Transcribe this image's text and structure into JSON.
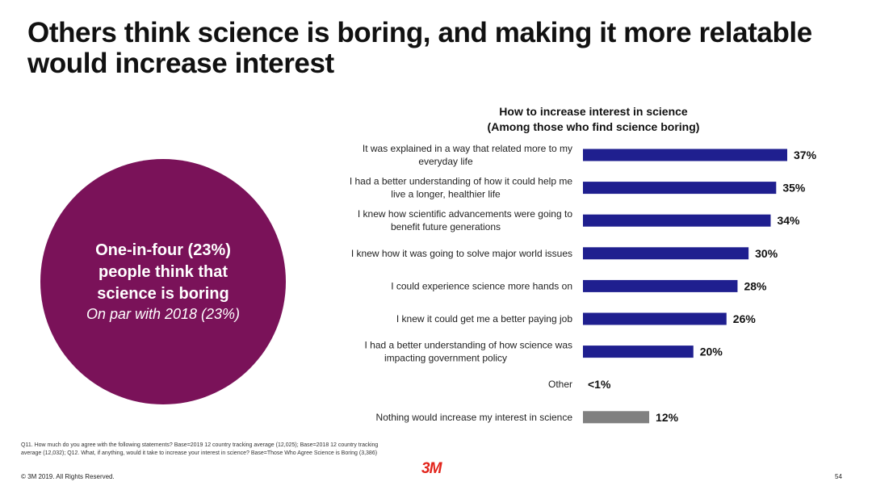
{
  "title": "Others think science is boring, and making it more relatable would increase interest",
  "callout": {
    "main": "One-in-four (23%) people think that science is boring",
    "sub": "On par with 2018 (23%)"
  },
  "chart_title_line1": "How to increase interest in science",
  "chart_title_line2": "(Among those who find science boring)",
  "chart_data": {
    "type": "bar",
    "orientation": "horizontal",
    "title": "How to increase interest in science (Among those who find science boring)",
    "xlim": [
      0,
      37
    ],
    "categories": [
      [
        "It was explained in a way that related more to my",
        "everyday life"
      ],
      [
        "I had a better understanding of how it could help me",
        "live a longer, healthier life"
      ],
      [
        "I knew how scientific advancements were going to",
        "benefit future generations"
      ],
      [
        "I knew how it was going to solve major world issues"
      ],
      [
        "I could experience science more hands on"
      ],
      [
        "I knew it could get me a better paying job"
      ],
      [
        "I had a better understanding of how science was",
        "impacting government policy"
      ],
      [
        "Other"
      ],
      [
        "Nothing would increase my interest in science"
      ]
    ],
    "values": [
      37,
      35,
      34,
      30,
      28,
      26,
      20,
      0.5,
      12
    ],
    "value_labels": [
      "37%",
      "35%",
      "34%",
      "30%",
      "28%",
      "26%",
      "20%",
      "<1%",
      "12%"
    ],
    "colors": [
      "#1f1f8f",
      "#1f1f8f",
      "#1f1f8f",
      "#1f1f8f",
      "#1f1f8f",
      "#1f1f8f",
      "#1f1f8f",
      "#1f1f8f",
      "#808080"
    ]
  },
  "footnote": "Q11. How much do you agree with the following statements? Base=2019 12 country tracking average (12,025); Base=2018 12 country tracking average (12,032); Q12. What, if anything, would it take to increase your interest in science? Base=Those Who Agree Science is Boring (3,386)",
  "logo": "3M",
  "copyright": "© 3M 2019.   All Rights Reserved.",
  "page_number": "54"
}
